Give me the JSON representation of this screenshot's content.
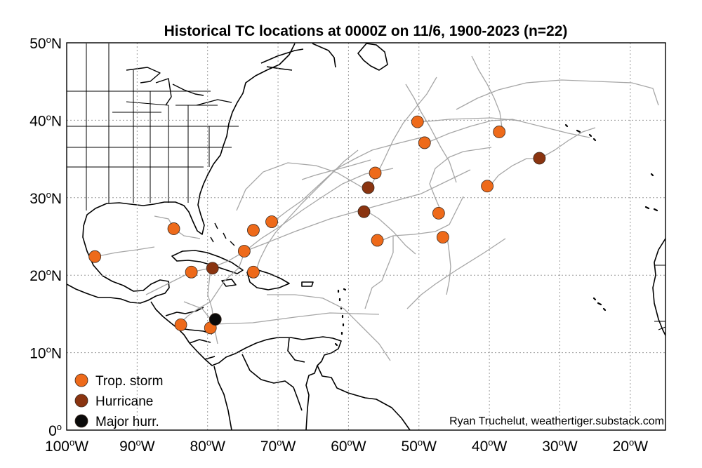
{
  "title": "Historical TC locations at 0000Z on 11/6, 1900-2023 (n=22)",
  "credit": "Ryan Truchelut, weathertiger.substack.com",
  "colors": {
    "trop_storm": "#ee6a1a",
    "hurricane": "#8a3410",
    "major_hurricane": "#0a0a0a",
    "track": "#a6a6a6",
    "coast": "#000000",
    "grid": "#9a9a9a"
  },
  "chart_data": {
    "type": "scatter",
    "projection": "equirectangular",
    "xlim": [
      -100,
      -15
    ],
    "ylim": [
      0,
      50
    ],
    "grid": true,
    "legend_position": "bottom-left",
    "x_ticks": [
      {
        "value": -100,
        "num": "100",
        "hem": "W"
      },
      {
        "value": -90,
        "num": "90",
        "hem": "W"
      },
      {
        "value": -80,
        "num": "80",
        "hem": "W"
      },
      {
        "value": -70,
        "num": "70",
        "hem": "W"
      },
      {
        "value": -60,
        "num": "60",
        "hem": "W"
      },
      {
        "value": -50,
        "num": "50",
        "hem": "W"
      },
      {
        "value": -40,
        "num": "40",
        "hem": "W"
      },
      {
        "value": -30,
        "num": "30",
        "hem": "W"
      },
      {
        "value": -20,
        "num": "20",
        "hem": "W"
      }
    ],
    "y_ticks": [
      {
        "value": 0,
        "num": "0",
        "hem": ""
      },
      {
        "value": 10,
        "num": "10",
        "hem": "N"
      },
      {
        "value": 20,
        "num": "20",
        "hem": "N"
      },
      {
        "value": 30,
        "num": "30",
        "hem": "N"
      },
      {
        "value": 40,
        "num": "40",
        "hem": "N"
      },
      {
        "value": 50,
        "num": "50",
        "hem": "N"
      }
    ],
    "legend": [
      {
        "key": "ts",
        "label": "Trop. storm"
      },
      {
        "key": "hu",
        "label": "Hurricane"
      },
      {
        "key": "mh",
        "label": "Major hurr."
      }
    ],
    "series": [
      {
        "name": "Trop. storm",
        "key": "ts",
        "points": [
          {
            "lon": -96.0,
            "lat": 22.4
          },
          {
            "lon": -84.8,
            "lat": 26.0
          },
          {
            "lon": -82.3,
            "lat": 20.4
          },
          {
            "lon": -83.8,
            "lat": 13.6
          },
          {
            "lon": -79.6,
            "lat": 13.2
          },
          {
            "lon": -74.8,
            "lat": 23.1
          },
          {
            "lon": -73.5,
            "lat": 25.8
          },
          {
            "lon": -73.5,
            "lat": 20.4
          },
          {
            "lon": -70.9,
            "lat": 26.9
          },
          {
            "lon": -56.2,
            "lat": 33.2
          },
          {
            "lon": -55.9,
            "lat": 24.5
          },
          {
            "lon": -50.2,
            "lat": 39.8
          },
          {
            "lon": -49.2,
            "lat": 37.1
          },
          {
            "lon": -47.2,
            "lat": 28.0
          },
          {
            "lon": -46.6,
            "lat": 24.9
          },
          {
            "lon": -40.3,
            "lat": 31.5
          },
          {
            "lon": -38.6,
            "lat": 38.5
          }
        ]
      },
      {
        "name": "Hurricane",
        "key": "hu",
        "points": [
          {
            "lon": -79.3,
            "lat": 20.9
          },
          {
            "lon": -57.2,
            "lat": 31.3
          },
          {
            "lon": -57.8,
            "lat": 28.2
          },
          {
            "lon": -32.9,
            "lat": 35.1
          }
        ]
      },
      {
        "name": "Major hurr.",
        "key": "mh",
        "points": [
          {
            "lon": -78.9,
            "lat": 14.3
          }
        ]
      }
    ]
  }
}
